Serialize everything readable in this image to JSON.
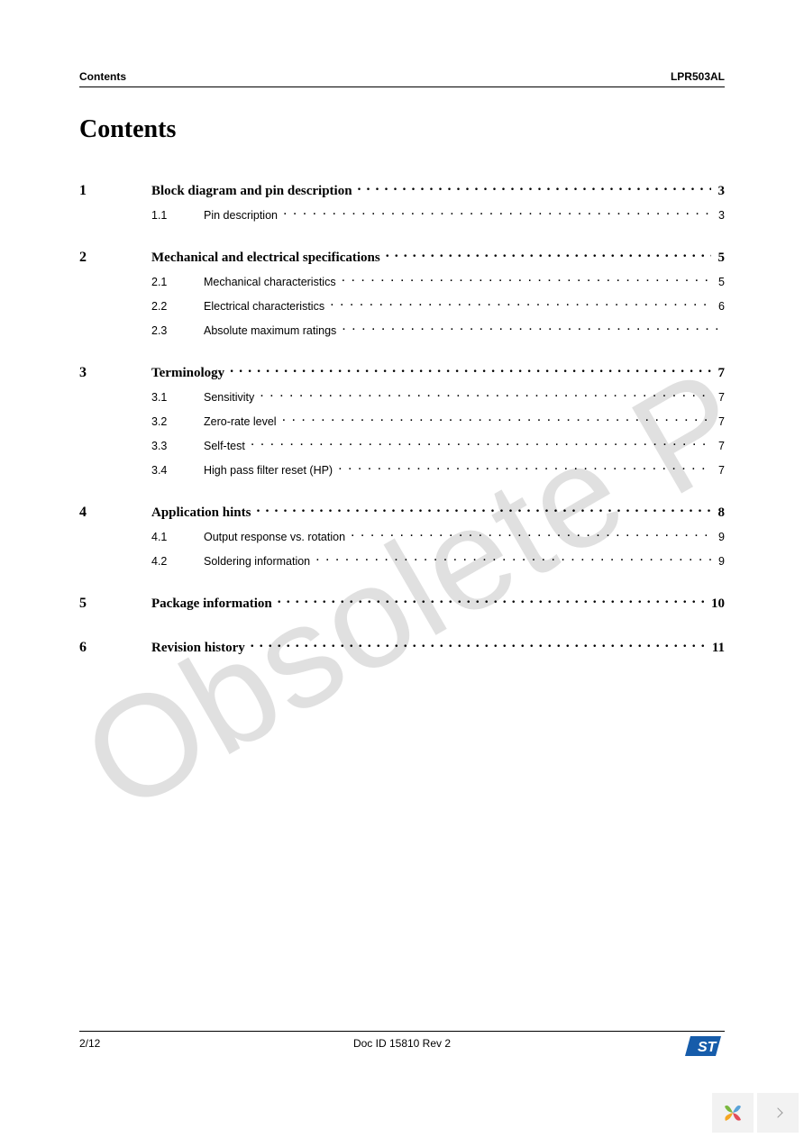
{
  "header": {
    "left": "Contents",
    "right": "LPR503AL"
  },
  "title": "Contents",
  "watermark": "Obsolete P",
  "footer": {
    "page": "2/12",
    "doc": "Doc ID 15810 Rev 2"
  },
  "logo": {
    "bg": "#165caa",
    "fg": "#ffffff"
  },
  "toc": [
    {
      "num": "1",
      "title": "Block diagram and pin description",
      "page": "3",
      "subs": [
        {
          "num": "1.1",
          "title": "Pin description",
          "page": "3"
        }
      ]
    },
    {
      "num": "2",
      "title": "Mechanical and electrical specifications",
      "page": "5",
      "subs": [
        {
          "num": "2.1",
          "title": "Mechanical characteristics",
          "page": "5"
        },
        {
          "num": "2.2",
          "title": "Electrical characteristics",
          "page": "6"
        },
        {
          "num": "2.3",
          "title": "Absolute maximum ratings",
          "page": ""
        }
      ]
    },
    {
      "num": "3",
      "title": "Terminology",
      "page": "7",
      "subs": [
        {
          "num": "3.1",
          "title": "Sensitivity",
          "page": "7"
        },
        {
          "num": "3.2",
          "title": "Zero-rate level",
          "page": "7"
        },
        {
          "num": "3.3",
          "title": "Self-test",
          "page": "7"
        },
        {
          "num": "3.4",
          "title": "High pass filter reset (HP)",
          "page": "7"
        }
      ]
    },
    {
      "num": "4",
      "title": "Application hints",
      "page": "8",
      "subs": [
        {
          "num": "4.1",
          "title": "Output response vs. rotation",
          "page": "9"
        },
        {
          "num": "4.2",
          "title": "Soldering information",
          "page": "9"
        }
      ]
    },
    {
      "num": "5",
      "title": "Package information",
      "page": "10",
      "subs": []
    },
    {
      "num": "6",
      "title": "Revision history",
      "page": "11",
      "subs": []
    }
  ],
  "yii_colors": {
    "tl": "#7bb83f",
    "tr": "#5aa3d8",
    "bl": "#f5a623",
    "br": "#e14d5a"
  }
}
